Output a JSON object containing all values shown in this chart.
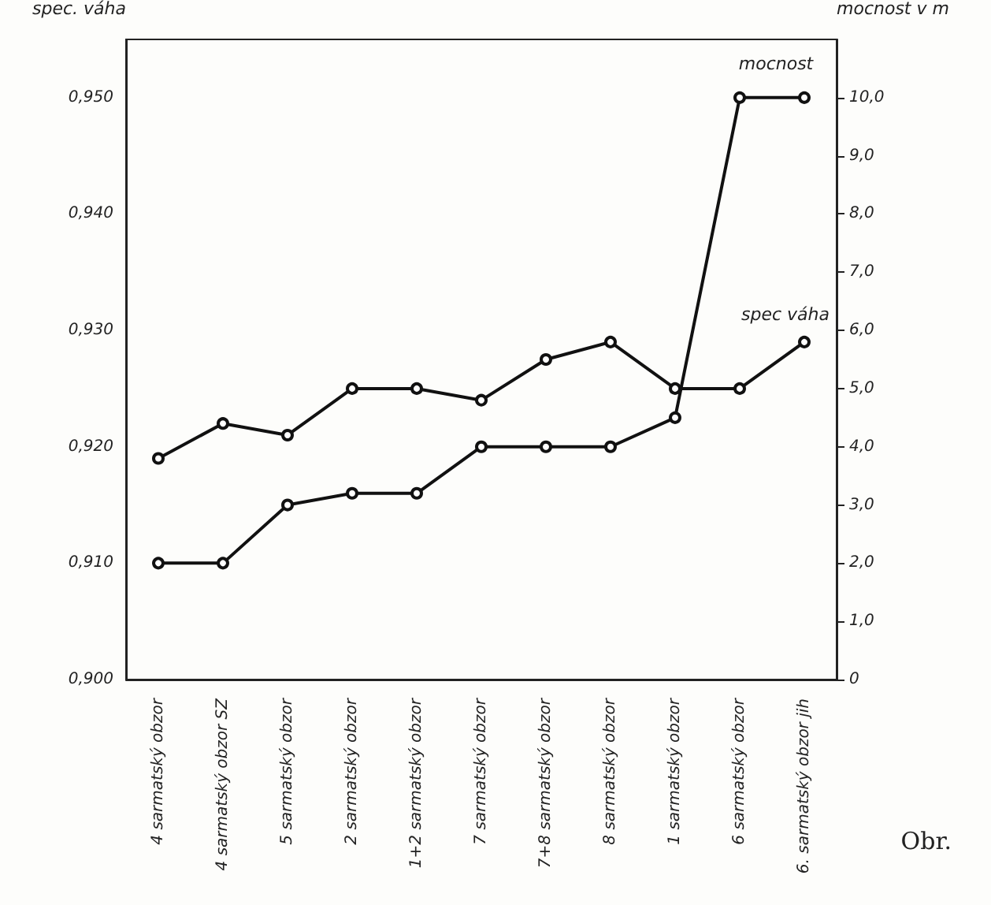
{
  "chart_data": {
    "type": "line",
    "ylabel": "spec. váha",
    "y2label": "mocnost v m",
    "categories": [
      "4 sarmatský obzor",
      "4 sarmatský obzor SZ",
      "5 sarmatský obzor",
      "2 sarmatský obzor",
      "1+2 sarmatský obzor",
      "7 sarmatský obzor",
      "7+8 sarmatský obzor",
      "8 sarmatský obzor",
      "1 sarmatský obzor",
      "6 sarmatský obzor",
      "6. sarmatský obzor jih"
    ],
    "series": [
      {
        "name": "spec váha",
        "color": "#111111",
        "values": [
          0.919,
          0.922,
          0.921,
          0.925,
          0.925,
          0.924,
          0.9275,
          0.929,
          0.925,
          0.925,
          0.929
        ]
      },
      {
        "name": "mocnost",
        "color": "#111111",
        "axis": "y2",
        "values": [
          2.0,
          2.0,
          3.0,
          3.2,
          3.2,
          4.0,
          4.0,
          4.0,
          4.5,
          10.0,
          10.0
        ]
      }
    ],
    "ylim": [
      0.9,
      0.955
    ],
    "yticks": [
      {
        "value": 0.9,
        "label": "0,900"
      },
      {
        "value": 0.91,
        "label": "0,910"
      },
      {
        "value": 0.92,
        "label": "0,920"
      },
      {
        "value": 0.93,
        "label": "0,930"
      },
      {
        "value": 0.94,
        "label": "0,940"
      },
      {
        "value": 0.95,
        "label": "0,950"
      }
    ],
    "y2lim": [
      0,
      11
    ],
    "y2ticks": [
      0,
      {
        "value": 1,
        "label": "1,0"
      },
      {
        "value": 2,
        "label": "2,0"
      },
      {
        "value": 3,
        "label": "3,0"
      },
      {
        "value": 4,
        "label": "4,0"
      },
      {
        "value": 5,
        "label": "5,0"
      },
      {
        "value": 6,
        "label": "6,0"
      },
      {
        "value": 7,
        "label": "7,0"
      },
      {
        "value": 8,
        "label": "8,0"
      },
      {
        "value": 9,
        "label": "9,0"
      },
      {
        "value": 10,
        "label": "10,0"
      }
    ],
    "annotations": [
      "Obr."
    ],
    "marker": "circle",
    "line_style": "solid",
    "grid": false,
    "legend": false
  }
}
